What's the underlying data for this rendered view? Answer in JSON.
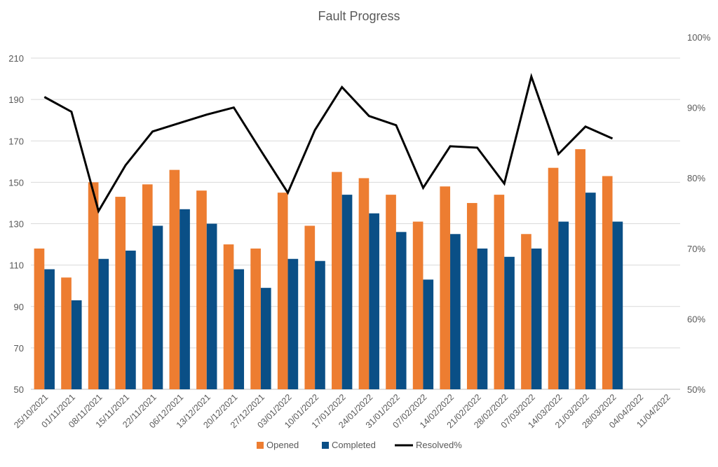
{
  "chart_data": {
    "type": "bar",
    "title": "Fault Progress",
    "xlabel": "",
    "ylabel": "",
    "y2label": "",
    "categories": [
      "25/10/2021",
      "01/11/2021",
      "08/11/2021",
      "15/11/2021",
      "22/11/2021",
      "06/12/2021",
      "13/12/2021",
      "20/12/2021",
      "27/12/2021",
      "03/01/2022",
      "10/01/2022",
      "17/01/2022",
      "24/01/2022",
      "31/01/2022",
      "07/02/2022",
      "14/02/2022",
      "21/02/2022",
      "28/02/2022",
      "07/03/2022",
      "14/03/2022",
      "21/03/2022",
      "28/03/2022",
      "04/04/2022",
      "11/04/2022"
    ],
    "ylim": [
      50,
      210
    ],
    "yticks": [
      50,
      70,
      90,
      110,
      130,
      150,
      170,
      190,
      210
    ],
    "y2lim": [
      50,
      100
    ],
    "y2ticks": [
      "50%",
      "60%",
      "70%",
      "80%",
      "90%",
      "100%"
    ],
    "grid": true,
    "legend_position": "bottom",
    "series": [
      {
        "name": "Opened",
        "kind": "bar",
        "axis": "left",
        "color": "#ED7D31",
        "values": [
          118,
          104,
          150,
          143,
          149,
          156,
          146,
          120,
          118,
          145,
          129,
          155,
          152,
          144,
          131,
          148,
          140,
          144,
          125,
          157,
          166,
          153,
          null,
          null
        ]
      },
      {
        "name": "Completed",
        "kind": "bar",
        "axis": "left",
        "color": "#0A4F86",
        "values": [
          108,
          93,
          113,
          117,
          129,
          137,
          130,
          108,
          99,
          113,
          112,
          144,
          135,
          126,
          103,
          125,
          118,
          114,
          118,
          131,
          145,
          131,
          null,
          null
        ]
      },
      {
        "name": "Resolved%",
        "kind": "line",
        "axis": "right",
        "color": "#000000",
        "values": [
          91.5,
          89.4,
          75.3,
          81.8,
          86.6,
          87.8,
          89.0,
          90.0,
          83.9,
          77.9,
          86.8,
          92.9,
          88.8,
          87.5,
          78.6,
          84.5,
          84.3,
          79.2,
          94.4,
          83.4,
          87.3,
          85.6,
          null,
          null
        ]
      }
    ]
  }
}
